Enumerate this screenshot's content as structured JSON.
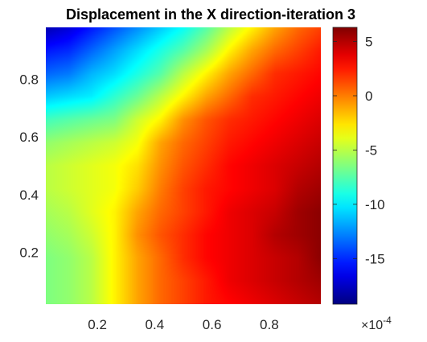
{
  "chart_data": {
    "type": "heatmap",
    "title": "Displacement in the X direction-iteration 3",
    "xlabel": "",
    "ylabel": "",
    "xlim": [
      0.02,
      0.98
    ],
    "ylim": [
      0.02,
      0.98
    ],
    "x_ticks": [
      "0.2",
      "0.4",
      "0.6",
      "0.8"
    ],
    "x_tick_values": [
      0.2,
      0.4,
      0.6,
      0.8
    ],
    "y_ticks": [
      "0.2",
      "0.4",
      "0.6",
      "0.8"
    ],
    "y_tick_values": [
      0.2,
      0.4,
      0.6,
      0.8
    ],
    "colormap": "jet",
    "colorbar": {
      "clim": [
        -19.2,
        6.3
      ],
      "ticks": [
        "5",
        "0",
        "-5",
        "-10",
        "-15"
      ],
      "tick_values": [
        5,
        0,
        -5,
        -10,
        -15
      ],
      "exponent_label": "×10",
      "exponent_power": "-4"
    },
    "grid_x": [
      0.02,
      0.1,
      0.18,
      0.26,
      0.34,
      0.42,
      0.5,
      0.58,
      0.66,
      0.74,
      0.82,
      0.9,
      0.98
    ],
    "grid_y": [
      0.02,
      0.1,
      0.18,
      0.26,
      0.34,
      0.42,
      0.5,
      0.58,
      0.66,
      0.74,
      0.82,
      0.9,
      0.98
    ],
    "z": [
      [
        -6.5,
        -6.0,
        -5.0,
        -3.0,
        -1.0,
        0.5,
        1.5,
        2.5,
        3.0,
        3.5,
        4.0,
        4.5,
        5.0
      ],
      [
        -6.5,
        -6.0,
        -5.0,
        -3.0,
        -1.0,
        0.5,
        1.5,
        2.5,
        3.5,
        4.0,
        4.5,
        5.0,
        5.5
      ],
      [
        -6.5,
        -6.0,
        -5.0,
        -3.0,
        -1.0,
        0.5,
        2.0,
        3.0,
        3.5,
        4.0,
        4.5,
        5.0,
        6.0
      ],
      [
        -6.0,
        -5.5,
        -4.5,
        -3.0,
        -0.5,
        1.0,
        2.0,
        3.0,
        3.5,
        4.0,
        5.0,
        5.5,
        6.0
      ],
      [
        -5.5,
        -5.0,
        -4.0,
        -3.0,
        -1.0,
        0.5,
        1.5,
        2.5,
        3.5,
        4.0,
        4.5,
        5.5,
        6.0
      ],
      [
        -5.0,
        -4.5,
        -4.0,
        -3.5,
        -2.0,
        0.0,
        1.5,
        2.5,
        3.0,
        3.5,
        4.0,
        5.0,
        5.5
      ],
      [
        -5.0,
        -4.5,
        -4.0,
        -3.5,
        -2.5,
        -0.5,
        1.0,
        2.0,
        3.0,
        3.5,
        4.0,
        4.5,
        5.0
      ],
      [
        -6.0,
        -5.5,
        -5.0,
        -4.5,
        -3.5,
        -1.0,
        0.5,
        1.5,
        2.5,
        3.0,
        3.5,
        4.0,
        4.5
      ],
      [
        -8.0,
        -7.5,
        -7.0,
        -6.5,
        -4.5,
        -3.0,
        -0.5,
        1.0,
        2.0,
        2.5,
        3.0,
        3.5,
        4.0
      ],
      [
        -11.0,
        -10.5,
        -10.0,
        -8.5,
        -7.0,
        -5.0,
        -3.0,
        -1.0,
        0.5,
        2.0,
        2.5,
        3.0,
        3.5
      ],
      [
        -13.5,
        -13.0,
        -11.5,
        -10.5,
        -9.0,
        -7.5,
        -5.0,
        -3.0,
        -1.0,
        0.5,
        2.0,
        2.5,
        3.0
      ],
      [
        -15.5,
        -15.0,
        -13.5,
        -12.0,
        -10.5,
        -9.0,
        -7.5,
        -5.5,
        -3.0,
        -1.0,
        0.5,
        1.5,
        2.5
      ],
      [
        -18.0,
        -17.0,
        -15.5,
        -14.0,
        -12.5,
        -11.0,
        -9.5,
        -7.5,
        -5.0,
        -3.0,
        -1.0,
        0.5,
        1.5
      ]
    ]
  }
}
